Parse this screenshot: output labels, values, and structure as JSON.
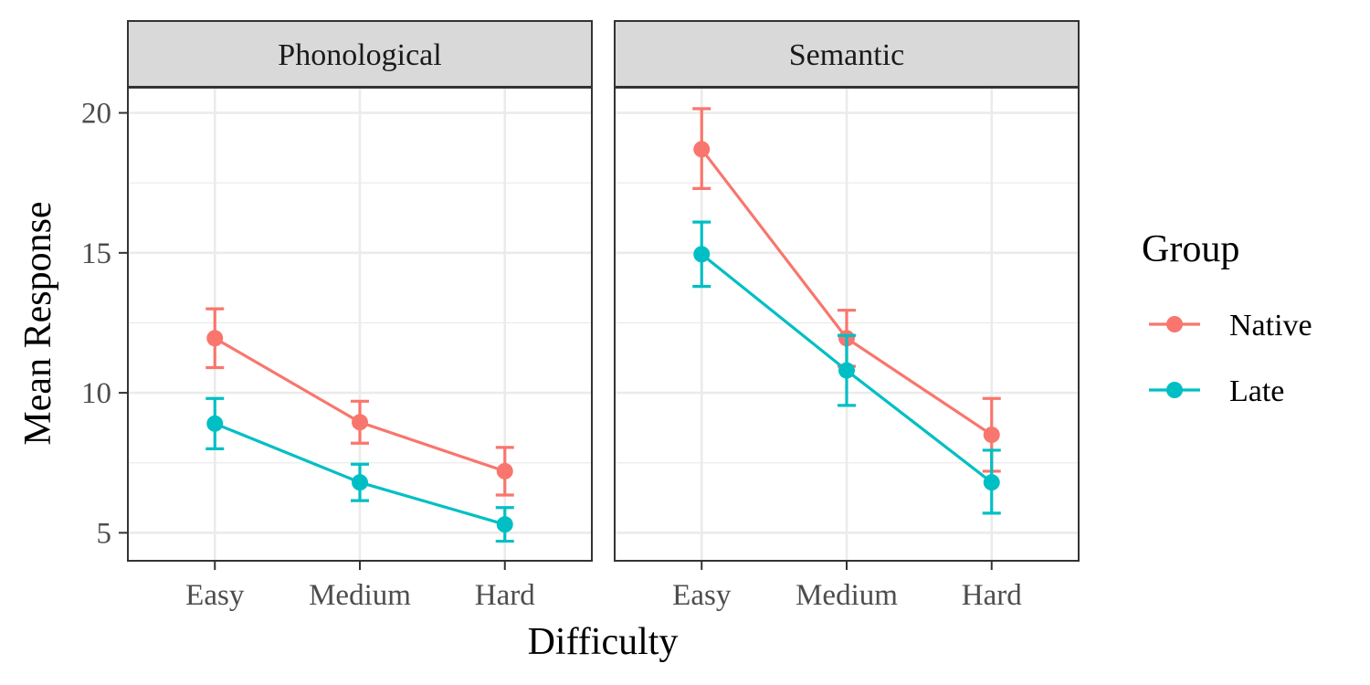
{
  "chart_data": {
    "type": "line",
    "xlabel": "Difficulty",
    "ylabel": "Mean Response",
    "x": [
      "Easy",
      "Medium",
      "Hard"
    ],
    "ylim": [
      4,
      20.9
    ],
    "yticks": [
      5,
      10,
      15,
      20
    ],
    "grid": true,
    "legend": {
      "title": "Group",
      "placement": "right",
      "entries": [
        "Native",
        "Late"
      ]
    },
    "colors": {
      "Native": "#F8766D",
      "Late": "#00BFC4"
    },
    "facets": [
      {
        "label": "Phonological",
        "series": [
          {
            "name": "Native",
            "values": [
              11.95,
              8.95,
              7.2
            ],
            "lower": [
              10.9,
              8.2,
              6.35
            ],
            "upper": [
              13.0,
              9.7,
              8.05
            ]
          },
          {
            "name": "Late",
            "values": [
              8.9,
              6.8,
              5.3
            ],
            "lower": [
              8.0,
              6.15,
              4.7
            ],
            "upper": [
              9.8,
              7.45,
              5.9
            ]
          }
        ]
      },
      {
        "label": "Semantic",
        "series": [
          {
            "name": "Native",
            "values": [
              18.7,
              11.95,
              8.5
            ],
            "lower": [
              17.3,
              10.95,
              7.2
            ],
            "upper": [
              20.15,
              12.95,
              9.8
            ]
          },
          {
            "name": "Late",
            "values": [
              14.95,
              10.8,
              6.8
            ],
            "lower": [
              13.8,
              9.55,
              5.7
            ],
            "upper": [
              16.1,
              12.05,
              7.95
            ]
          }
        ]
      }
    ]
  }
}
